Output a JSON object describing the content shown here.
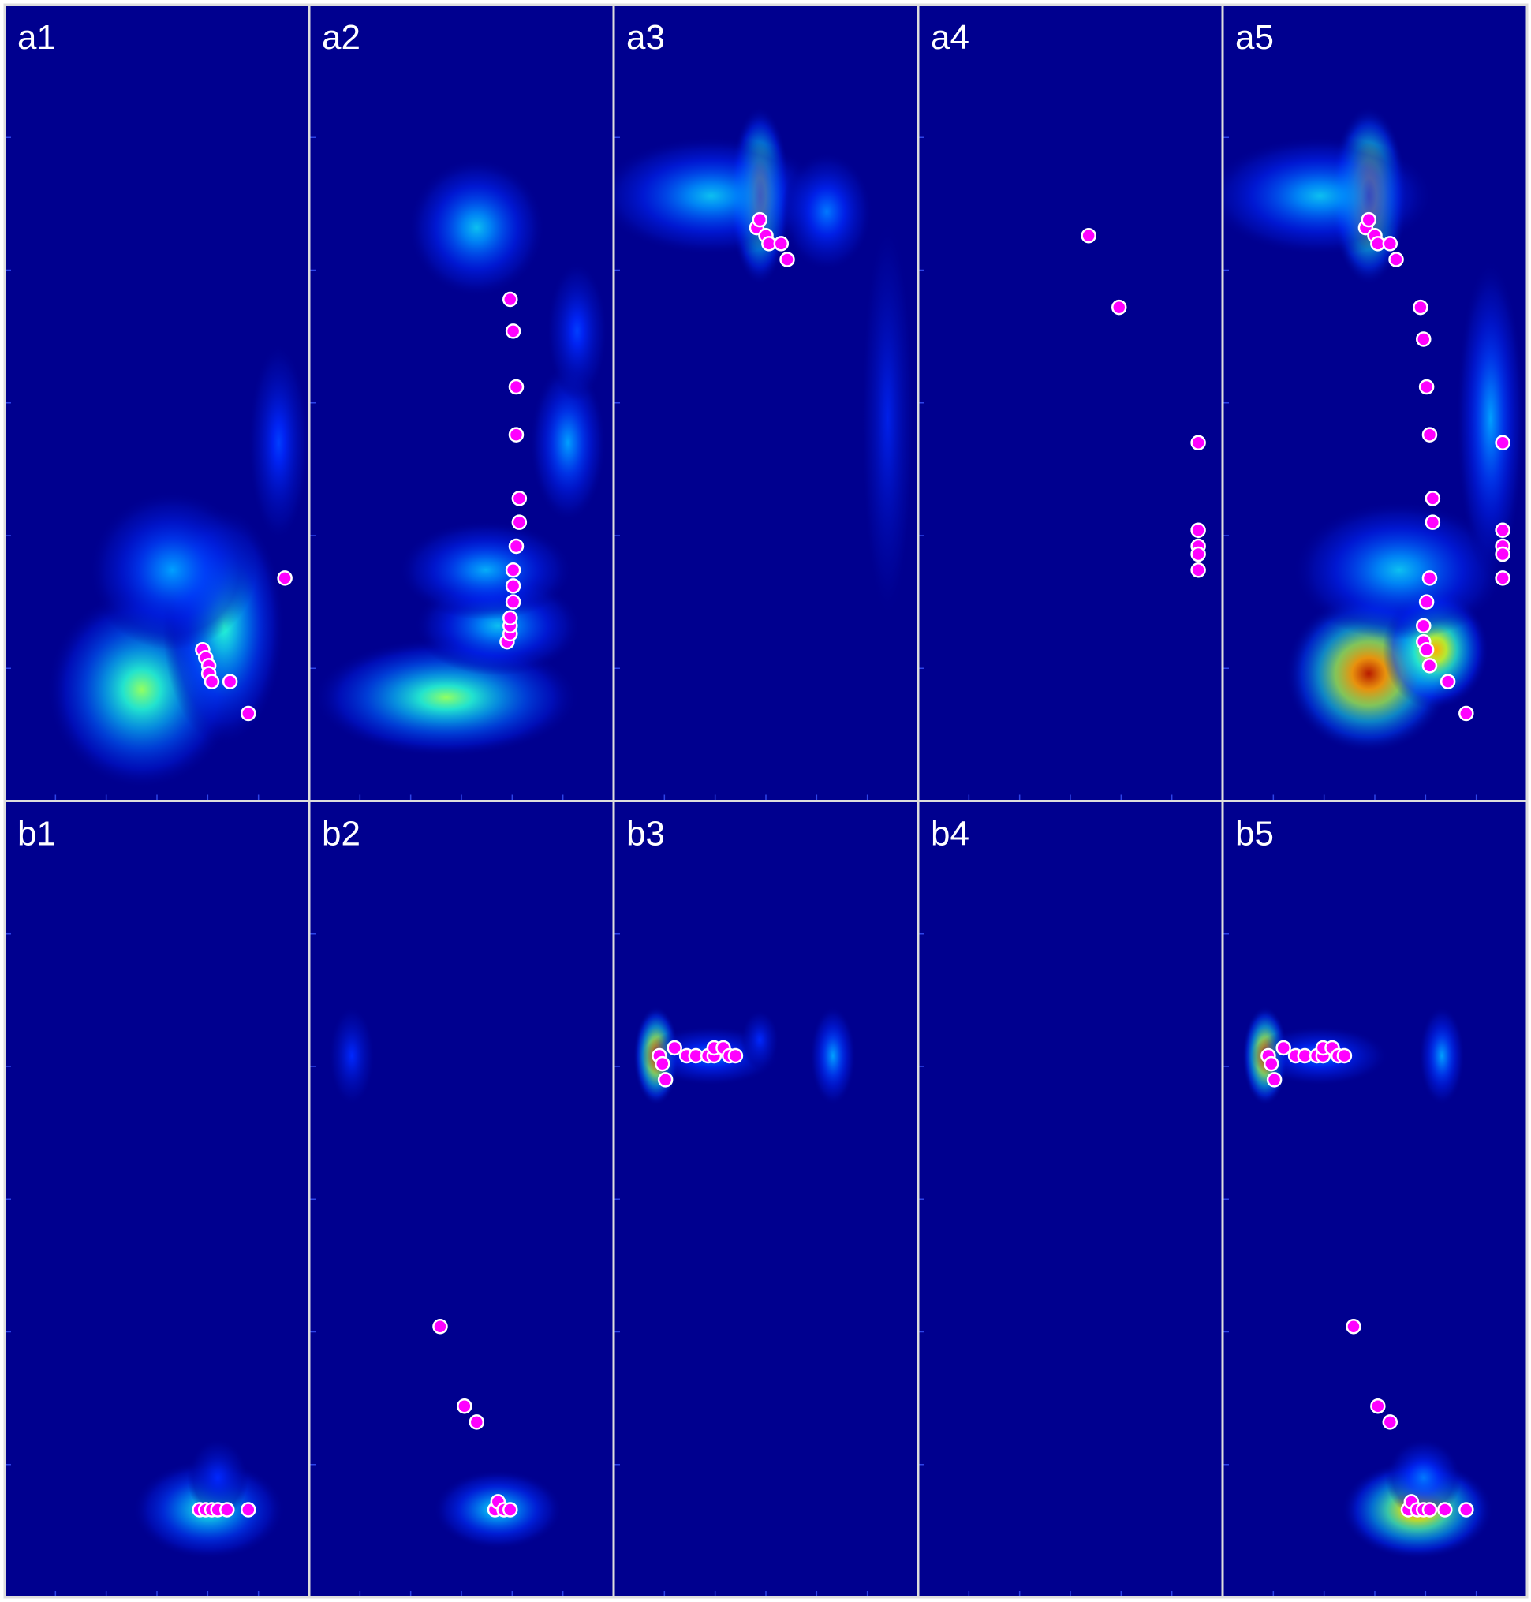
{
  "chart_data": {
    "type": "heatmap",
    "layout": {
      "rows": 2,
      "cols": 5
    },
    "colors": {
      "background": "#00008f",
      "marker_fill": "#ff00ff",
      "marker_edge": "#ffffff",
      "separator": "#dddddd",
      "label": "#ffffff"
    },
    "x_ticks": [
      1,
      2,
      3,
      4,
      5
    ],
    "y_ticks": [
      1,
      2,
      3,
      4,
      5,
      6
    ],
    "panels": [
      {
        "label": "a1",
        "row": 0,
        "col": 0,
        "heat": [
          {
            "x": 0.45,
            "y": 0.86,
            "rx": 0.25,
            "ry": 0.1,
            "v": 0.55
          },
          {
            "x": 0.72,
            "y": 0.78,
            "rx": 0.16,
            "ry": 0.12,
            "v": 0.45
          },
          {
            "x": 0.55,
            "y": 0.71,
            "rx": 0.22,
            "ry": 0.08,
            "v": 0.3
          },
          {
            "x": 0.9,
            "y": 0.55,
            "rx": 0.08,
            "ry": 0.1,
            "v": 0.18
          }
        ],
        "points": [
          [
            0.65,
            0.81
          ],
          [
            0.66,
            0.82
          ],
          [
            0.67,
            0.83
          ],
          [
            0.67,
            0.84
          ],
          [
            0.68,
            0.85
          ],
          [
            0.74,
            0.85
          ],
          [
            0.8,
            0.89
          ],
          [
            0.92,
            0.72
          ]
        ]
      },
      {
        "label": "a2",
        "row": 0,
        "col": 1,
        "heat": [
          {
            "x": 0.45,
            "y": 0.87,
            "rx": 0.35,
            "ry": 0.06,
            "v": 0.55
          },
          {
            "x": 0.62,
            "y": 0.78,
            "rx": 0.22,
            "ry": 0.05,
            "v": 0.35
          },
          {
            "x": 0.58,
            "y": 0.71,
            "rx": 0.23,
            "ry": 0.05,
            "v": 0.32
          },
          {
            "x": 0.85,
            "y": 0.55,
            "rx": 0.1,
            "ry": 0.08,
            "v": 0.3
          },
          {
            "x": 0.88,
            "y": 0.41,
            "rx": 0.08,
            "ry": 0.07,
            "v": 0.18
          },
          {
            "x": 0.55,
            "y": 0.28,
            "rx": 0.18,
            "ry": 0.07,
            "v": 0.35
          }
        ],
        "points": [
          [
            0.65,
            0.8
          ],
          [
            0.66,
            0.79
          ],
          [
            0.66,
            0.78
          ],
          [
            0.66,
            0.77
          ],
          [
            0.67,
            0.75
          ],
          [
            0.67,
            0.73
          ],
          [
            0.67,
            0.71
          ],
          [
            0.68,
            0.68
          ],
          [
            0.69,
            0.65
          ],
          [
            0.69,
            0.62
          ],
          [
            0.68,
            0.54
          ],
          [
            0.68,
            0.48
          ],
          [
            0.67,
            0.41
          ],
          [
            0.66,
            0.37
          ]
        ]
      },
      {
        "label": "a3",
        "row": 0,
        "col": 2,
        "heat": [
          {
            "x": 0.48,
            "y": 0.24,
            "rx": 0.08,
            "ry": 0.09,
            "v": 0.8
          },
          {
            "x": 0.32,
            "y": 0.24,
            "rx": 0.3,
            "ry": 0.06,
            "v": 0.35
          },
          {
            "x": 0.7,
            "y": 0.26,
            "rx": 0.12,
            "ry": 0.06,
            "v": 0.25
          },
          {
            "x": 0.9,
            "y": 0.52,
            "rx": 0.07,
            "ry": 0.2,
            "v": 0.12
          }
        ],
        "points": [
          [
            0.47,
            0.28
          ],
          [
            0.48,
            0.27
          ],
          [
            0.5,
            0.29
          ],
          [
            0.51,
            0.3
          ],
          [
            0.55,
            0.3
          ],
          [
            0.57,
            0.32
          ]
        ]
      },
      {
        "label": "a4",
        "row": 0,
        "col": 3,
        "heat": [],
        "points": [
          [
            0.56,
            0.29
          ],
          [
            0.66,
            0.38
          ],
          [
            0.92,
            0.55
          ],
          [
            0.92,
            0.66
          ],
          [
            0.92,
            0.68
          ],
          [
            0.92,
            0.69
          ],
          [
            0.92,
            0.71
          ]
        ]
      },
      {
        "label": "a5",
        "row": 0,
        "col": 4,
        "heat": [
          {
            "x": 0.48,
            "y": 0.84,
            "rx": 0.22,
            "ry": 0.08,
            "v": 0.95
          },
          {
            "x": 0.7,
            "y": 0.81,
            "rx": 0.14,
            "ry": 0.06,
            "v": 0.75
          },
          {
            "x": 0.58,
            "y": 0.71,
            "rx": 0.28,
            "ry": 0.07,
            "v": 0.35
          },
          {
            "x": 0.48,
            "y": 0.24,
            "rx": 0.1,
            "ry": 0.09,
            "v": 0.9
          },
          {
            "x": 0.32,
            "y": 0.24,
            "rx": 0.3,
            "ry": 0.06,
            "v": 0.35
          },
          {
            "x": 0.88,
            "y": 0.52,
            "rx": 0.09,
            "ry": 0.16,
            "v": 0.3
          }
        ],
        "points": [
          [
            0.47,
            0.28
          ],
          [
            0.48,
            0.27
          ],
          [
            0.5,
            0.29
          ],
          [
            0.51,
            0.3
          ],
          [
            0.55,
            0.3
          ],
          [
            0.57,
            0.32
          ],
          [
            0.65,
            0.38
          ],
          [
            0.66,
            0.42
          ],
          [
            0.67,
            0.48
          ],
          [
            0.68,
            0.54
          ],
          [
            0.69,
            0.62
          ],
          [
            0.69,
            0.65
          ],
          [
            0.68,
            0.72
          ],
          [
            0.67,
            0.75
          ],
          [
            0.66,
            0.78
          ],
          [
            0.66,
            0.8
          ],
          [
            0.67,
            0.81
          ],
          [
            0.68,
            0.83
          ],
          [
            0.74,
            0.85
          ],
          [
            0.8,
            0.89
          ],
          [
            0.92,
            0.55
          ],
          [
            0.92,
            0.66
          ],
          [
            0.92,
            0.68
          ],
          [
            0.92,
            0.69
          ],
          [
            0.92,
            0.72
          ]
        ]
      },
      {
        "label": "b1",
        "row": 1,
        "col": 0,
        "heat": [
          {
            "x": 0.67,
            "y": 0.89,
            "rx": 0.2,
            "ry": 0.05,
            "v": 0.45
          },
          {
            "x": 0.7,
            "y": 0.85,
            "rx": 0.08,
            "ry": 0.04,
            "v": 0.15
          }
        ],
        "points": [
          [
            0.64,
            0.89
          ],
          [
            0.66,
            0.89
          ],
          [
            0.68,
            0.89
          ],
          [
            0.7,
            0.89
          ],
          [
            0.73,
            0.89
          ],
          [
            0.8,
            0.89
          ]
        ]
      },
      {
        "label": "b2",
        "row": 1,
        "col": 1,
        "heat": [
          {
            "x": 0.62,
            "y": 0.89,
            "rx": 0.17,
            "ry": 0.04,
            "v": 0.4
          },
          {
            "x": 0.14,
            "y": 0.32,
            "rx": 0.06,
            "ry": 0.05,
            "v": 0.15
          }
        ],
        "points": [
          [
            0.43,
            0.66
          ],
          [
            0.51,
            0.76
          ],
          [
            0.55,
            0.78
          ],
          [
            0.61,
            0.89
          ],
          [
            0.62,
            0.88
          ],
          [
            0.64,
            0.89
          ],
          [
            0.66,
            0.89
          ]
        ]
      },
      {
        "label": "b3",
        "row": 1,
        "col": 2,
        "heat": [
          {
            "x": 0.14,
            "y": 0.32,
            "rx": 0.06,
            "ry": 0.05,
            "v": 0.9
          },
          {
            "x": 0.32,
            "y": 0.32,
            "rx": 0.18,
            "ry": 0.03,
            "v": 0.25
          },
          {
            "x": 0.72,
            "y": 0.32,
            "rx": 0.06,
            "ry": 0.05,
            "v": 0.3
          },
          {
            "x": 0.48,
            "y": 0.3,
            "rx": 0.05,
            "ry": 0.03,
            "v": 0.15
          }
        ],
        "points": [
          [
            0.15,
            0.32
          ],
          [
            0.16,
            0.33
          ],
          [
            0.17,
            0.35
          ],
          [
            0.2,
            0.31
          ],
          [
            0.24,
            0.32
          ],
          [
            0.27,
            0.32
          ],
          [
            0.31,
            0.32
          ],
          [
            0.33,
            0.32
          ],
          [
            0.33,
            0.31
          ],
          [
            0.36,
            0.31
          ],
          [
            0.38,
            0.32
          ],
          [
            0.4,
            0.32
          ]
        ]
      },
      {
        "label": "b4",
        "row": 1,
        "col": 3,
        "heat": [],
        "points": []
      },
      {
        "label": "b5",
        "row": 1,
        "col": 4,
        "heat": [
          {
            "x": 0.14,
            "y": 0.32,
            "rx": 0.06,
            "ry": 0.05,
            "v": 0.9
          },
          {
            "x": 0.32,
            "y": 0.32,
            "rx": 0.18,
            "ry": 0.03,
            "v": 0.25
          },
          {
            "x": 0.72,
            "y": 0.32,
            "rx": 0.06,
            "ry": 0.05,
            "v": 0.3
          },
          {
            "x": 0.64,
            "y": 0.89,
            "rx": 0.2,
            "ry": 0.05,
            "v": 0.8
          },
          {
            "x": 0.66,
            "y": 0.85,
            "rx": 0.1,
            "ry": 0.04,
            "v": 0.25
          }
        ],
        "points": [
          [
            0.15,
            0.32
          ],
          [
            0.16,
            0.33
          ],
          [
            0.17,
            0.35
          ],
          [
            0.2,
            0.31
          ],
          [
            0.24,
            0.32
          ],
          [
            0.27,
            0.32
          ],
          [
            0.31,
            0.32
          ],
          [
            0.33,
            0.32
          ],
          [
            0.33,
            0.31
          ],
          [
            0.36,
            0.31
          ],
          [
            0.38,
            0.32
          ],
          [
            0.4,
            0.32
          ],
          [
            0.43,
            0.66
          ],
          [
            0.51,
            0.76
          ],
          [
            0.55,
            0.78
          ],
          [
            0.61,
            0.89
          ],
          [
            0.62,
            0.88
          ],
          [
            0.64,
            0.89
          ],
          [
            0.66,
            0.89
          ],
          [
            0.68,
            0.89
          ],
          [
            0.73,
            0.89
          ],
          [
            0.8,
            0.89
          ]
        ]
      }
    ]
  }
}
